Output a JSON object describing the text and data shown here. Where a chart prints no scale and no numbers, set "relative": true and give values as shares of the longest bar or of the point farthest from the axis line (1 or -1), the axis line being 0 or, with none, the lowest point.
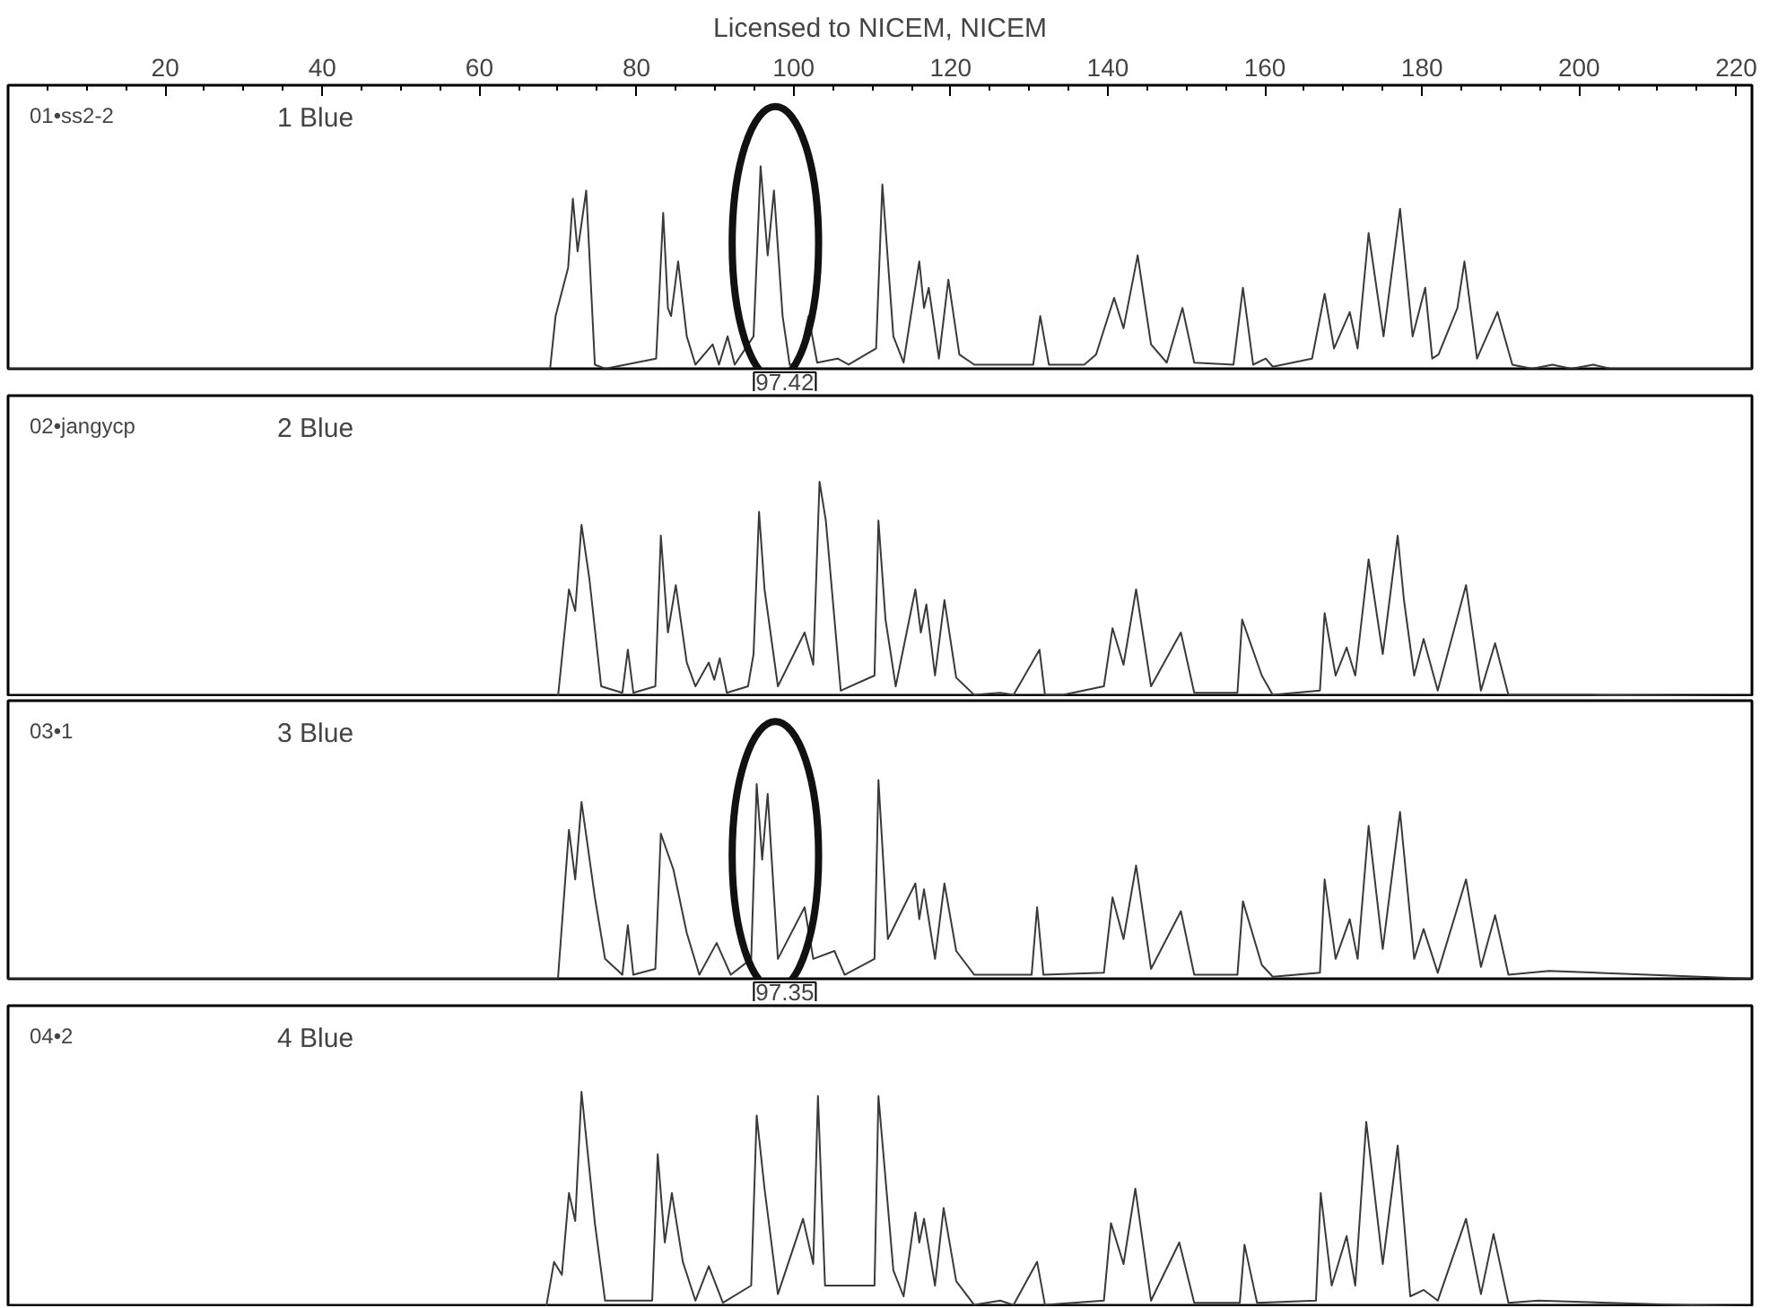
{
  "chart_data": [
    {
      "type": "line",
      "title": "Licensed to NICEM, NICEM",
      "relative": true,
      "xlim": [
        0,
        222
      ],
      "xticks": [
        20,
        40,
        60,
        80,
        100,
        120,
        140,
        160,
        180,
        200,
        220
      ],
      "tick_labels": "x",
      "grid": false,
      "annotations": [
        "01•ss2-2",
        "1 Blue",
        "97.42"
      ],
      "series": [
        {
          "color": "#3a3a3a",
          "x": [
            0,
            69,
            69.7,
            71.3,
            71.9,
            72.5,
            73.6,
            74.7,
            76,
            82.5,
            83.4,
            84.0,
            84.4,
            85.3,
            86.4,
            87.5,
            89.7,
            90.5,
            91.6,
            92.5,
            94.9,
            95.8,
            96.7,
            97.5,
            98.6,
            99.5,
            100.5,
            101.9,
            103,
            105.6,
            107,
            110.5,
            111.3,
            112.7,
            114,
            116.0,
            116.6,
            117.2,
            118.5,
            119.7,
            121.1,
            123,
            130.5,
            131.4,
            132.5,
            137,
            138.5,
            140.8,
            142,
            143.8,
            145.5,
            147.5,
            149.5,
            151,
            156,
            157.2,
            158.5,
            160.1,
            161,
            166,
            167.6,
            168.8,
            170.8,
            171.8,
            173.2,
            175.1,
            177.2,
            178.8,
            180.4,
            181.3,
            182.1,
            184.5,
            185.4,
            187,
            189.6,
            191.5,
            194,
            196.6,
            199,
            201.8,
            204,
            205.6,
            222
          ],
          "values": [
            0,
            0,
            0.26,
            0.5,
            0.84,
            0.58,
            0.88,
            0.02,
            0,
            0.05,
            0.77,
            0.3,
            0.26,
            0.53,
            0.16,
            0.02,
            0.12,
            0.02,
            0.16,
            0.02,
            0.16,
            1.0,
            0.56,
            0.88,
            0.26,
            0.02,
            0.02,
            0.26,
            0.03,
            0.05,
            0.02,
            0.1,
            0.91,
            0.16,
            0.03,
            0.53,
            0.3,
            0.4,
            0.05,
            0.44,
            0.07,
            0.02,
            0.02,
            0.26,
            0.02,
            0.02,
            0.07,
            0.35,
            0.2,
            0.56,
            0.12,
            0.03,
            0.3,
            0.03,
            0.02,
            0.4,
            0.02,
            0.05,
            0.01,
            0.05,
            0.37,
            0.1,
            0.28,
            0.1,
            0.67,
            0.16,
            0.79,
            0.16,
            0.4,
            0.05,
            0.07,
            0.3,
            0.53,
            0.05,
            0.28,
            0.02,
            0,
            0.02,
            0,
            0.02,
            0,
            0,
            0
          ]
        }
      ]
    },
    {
      "type": "line",
      "relative": true,
      "xlim": [
        0,
        222
      ],
      "tick_labels": false,
      "grid": false,
      "annotations": [
        "02•jangycp",
        "2 Blue"
      ],
      "series": [
        {
          "color": "#3a3a3a",
          "x": [
            0,
            70,
            71.4,
            72.2,
            73.0,
            74.0,
            75.5,
            78.2,
            78.9,
            79.6,
            82.4,
            83.1,
            84.0,
            85.0,
            86.4,
            87.5,
            89.2,
            89.9,
            90.6,
            91.5,
            94.2,
            94.9,
            95.6,
            96.3,
            98,
            101.4,
            102.5,
            103.3,
            104.1,
            106,
            110.3,
            110.8,
            111.7,
            113,
            115.5,
            116.2,
            116.9,
            118,
            119.2,
            120.7,
            123,
            126.3,
            128,
            131.3,
            132,
            134.3,
            139.5,
            140.6,
            142,
            143.6,
            145.5,
            149.3,
            151,
            156.5,
            157.1,
            159.6,
            161,
            167,
            167.6,
            169,
            170.4,
            171.5,
            173.2,
            175,
            176.9,
            177.7,
            179,
            180.2,
            182,
            185.6,
            187.5,
            189.3,
            191,
            201.3,
            222
          ],
          "values": [
            0,
            0,
            0.5,
            0.4,
            0.8,
            0.55,
            0.05,
            0.02,
            0.22,
            0.02,
            0.05,
            0.75,
            0.3,
            0.52,
            0.16,
            0.05,
            0.16,
            0.08,
            0.18,
            0.02,
            0.05,
            0.2,
            0.86,
            0.5,
            0.05,
            0.3,
            0.15,
            1.0,
            0.82,
            0.03,
            0.1,
            0.82,
            0.36,
            0.05,
            0.5,
            0.3,
            0.43,
            0.1,
            0.45,
            0.09,
            0.01,
            0.02,
            0.01,
            0.22,
            0.01,
            0.01,
            0.05,
            0.32,
            0.15,
            0.5,
            0.05,
            0.3,
            0.02,
            0.02,
            0.36,
            0.1,
            0.01,
            0.03,
            0.39,
            0.1,
            0.23,
            0.1,
            0.64,
            0.2,
            0.75,
            0.45,
            0.1,
            0.27,
            0.03,
            0.52,
            0.03,
            0.25,
            0.01,
            0.01,
            0
          ]
        }
      ]
    },
    {
      "type": "line",
      "relative": true,
      "xlim": [
        0,
        222
      ],
      "tick_labels": false,
      "grid": false,
      "annotations": [
        "03•1",
        "3 Blue",
        "97.35"
      ],
      "series": [
        {
          "color": "#3a3a3a",
          "x": [
            0,
            70,
            71.4,
            72.2,
            73.0,
            74.7,
            76,
            78.2,
            78.9,
            79.6,
            82.4,
            83.1,
            84.7,
            86.4,
            88,
            90.2,
            92,
            94.6,
            95.3,
            96.0,
            96.7,
            98,
            101.4,
            102.5,
            105.2,
            106.5,
            110.3,
            110.8,
            112,
            115.5,
            116.0,
            116.6,
            118,
            119.2,
            120.7,
            123,
            130.3,
            131.0,
            131.8,
            139.5,
            140.6,
            142,
            143.6,
            145.5,
            149.3,
            151,
            156.5,
            157.2,
            159.6,
            161,
            167,
            167.6,
            169,
            170.8,
            171.8,
            173.2,
            175,
            177.2,
            179,
            180.2,
            182,
            185.6,
            187.5,
            189.3,
            191,
            196.2,
            222
          ],
          "values": [
            0,
            0,
            0.75,
            0.5,
            0.89,
            0.41,
            0.1,
            0.02,
            0.27,
            0.02,
            0.05,
            0.73,
            0.55,
            0.23,
            0.02,
            0.18,
            0.02,
            0.1,
            0.98,
            0.6,
            0.93,
            0.1,
            0.36,
            0.1,
            0.14,
            0.02,
            0.1,
            1.0,
            0.2,
            0.48,
            0.3,
            0.45,
            0.1,
            0.48,
            0.14,
            0.02,
            0.02,
            0.36,
            0.02,
            0.03,
            0.41,
            0.2,
            0.57,
            0.05,
            0.34,
            0.02,
            0.02,
            0.39,
            0.07,
            0.01,
            0.03,
            0.5,
            0.1,
            0.3,
            0.1,
            0.77,
            0.15,
            0.84,
            0.1,
            0.25,
            0.03,
            0.5,
            0.06,
            0.32,
            0.02,
            0.04,
            0
          ]
        }
      ]
    },
    {
      "type": "line",
      "relative": true,
      "xlim": [
        0,
        222
      ],
      "tick_labels": false,
      "grid": false,
      "annotations": [
        "04•2",
        "4 Blue"
      ],
      "series": [
        {
          "color": "#3a3a3a",
          "x": [
            0,
            68.5,
            69.5,
            70.5,
            71.4,
            72.2,
            73.0,
            74.7,
            76,
            82,
            82.7,
            83.6,
            84.5,
            85.9,
            87.5,
            89.2,
            91,
            94.6,
            95.3,
            96.3,
            98,
            101.2,
            102.5,
            103.1,
            104,
            110.3,
            110.8,
            112.7,
            114,
            115.5,
            116.0,
            116.6,
            118,
            119.1,
            120.7,
            123,
            126.3,
            128,
            131.0,
            132,
            139.5,
            140.4,
            142,
            143.5,
            145.5,
            149.1,
            151,
            156.8,
            157.4,
            159,
            166.5,
            167.1,
            168.5,
            170.4,
            171.5,
            172.9,
            175,
            176.9,
            178.5,
            180.2,
            182,
            185.6,
            187.5,
            189.1,
            191,
            194.8,
            222
          ],
          "values": [
            0,
            0,
            0.21,
            0.15,
            0.53,
            0.4,
            1.0,
            0.39,
            0.03,
            0.03,
            0.71,
            0.3,
            0.53,
            0.21,
            0.03,
            0.19,
            0.02,
            0.1,
            0.89,
            0.55,
            0.06,
            0.41,
            0.2,
            0.98,
            0.1,
            0.1,
            0.98,
            0.17,
            0.05,
            0.44,
            0.3,
            0.41,
            0.1,
            0.46,
            0.12,
            0.01,
            0.03,
            0.01,
            0.21,
            0.01,
            0.03,
            0.39,
            0.2,
            0.55,
            0.03,
            0.3,
            0.02,
            0.02,
            0.29,
            0.02,
            0.03,
            0.53,
            0.1,
            0.33,
            0.1,
            0.86,
            0.2,
            0.75,
            0.05,
            0.08,
            0.03,
            0.41,
            0.06,
            0.34,
            0.02,
            0.03,
            0
          ]
        }
      ]
    }
  ]
}
